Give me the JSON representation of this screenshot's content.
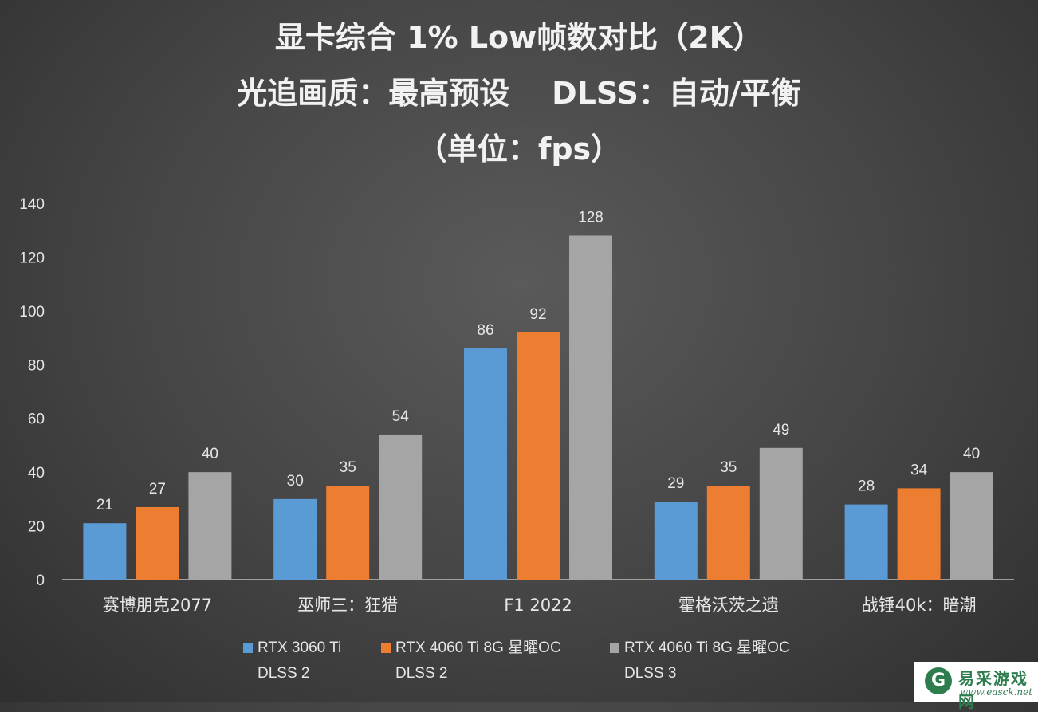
{
  "chart_data": {
    "type": "bar",
    "title_lines": [
      "显卡综合 1% Low帧数对比（2K）",
      "光追画质：最高预设    DLSS：自动/平衡",
      "（单位：fps）"
    ],
    "categories": [
      "赛博朋克2077",
      "巫师三：狂猎",
      "F1 2022",
      "霍格沃茨之遗",
      "战锤40k：暗潮"
    ],
    "series": [
      {
        "name": "RTX 3060 Ti DLSS 2",
        "name_lines": [
          "RTX 3060 Ti",
          "DLSS 2"
        ],
        "color": "#5b9bd5",
        "values": [
          21,
          30,
          86,
          29,
          28
        ]
      },
      {
        "name": "RTX 4060 Ti 8G 星曜OC DLSS 2",
        "name_lines": [
          "RTX 4060 Ti 8G 星曜OC",
          "DLSS 2"
        ],
        "color": "#ed7d31",
        "values": [
          27,
          35,
          92,
          35,
          34
        ]
      },
      {
        "name": "RTX 4060 Ti 8G 星曜OC DLSS 3",
        "name_lines": [
          "RTX 4060 Ti 8G 星曜OC",
          "DLSS 3"
        ],
        "color": "#a5a5a5",
        "values": [
          40,
          54,
          128,
          49,
          40
        ]
      }
    ],
    "ylim": [
      0,
      140
    ],
    "yticks": [
      0,
      20,
      40,
      60,
      80,
      100,
      120,
      140
    ],
    "grid": false,
    "data_labels": true,
    "legend_position": "bottom"
  },
  "watermark": {
    "logo_glyph": "G",
    "name": "易采游戏网",
    "url": "www.easck.net"
  }
}
